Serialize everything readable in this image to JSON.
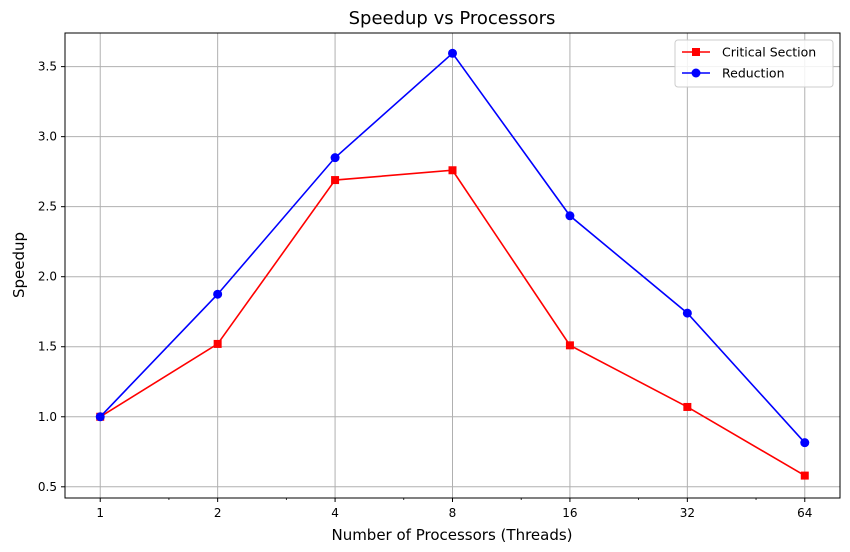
{
  "chart_data": {
    "type": "line",
    "title": "Speedup vs Processors",
    "xlabel": "Number of Processors (Threads)",
    "ylabel": "Speedup",
    "x_scale": "log2",
    "x": [
      1,
      2,
      4,
      8,
      16,
      32,
      64
    ],
    "x_tick_labels": [
      "1",
      "2",
      "4",
      "8",
      "16",
      "32",
      "64"
    ],
    "ylim": [
      0.42,
      3.74
    ],
    "y_ticks": [
      0.5,
      1.0,
      1.5,
      2.0,
      2.5,
      3.0,
      3.5
    ],
    "y_tick_labels": [
      "0.5",
      "1.0",
      "1.5",
      "2.0",
      "2.5",
      "3.0",
      "3.5"
    ],
    "grid": true,
    "legend_position": "top-right",
    "series": [
      {
        "name": "Critical Section",
        "color": "#ff0000",
        "marker": "square",
        "values": [
          1.0,
          1.52,
          2.69,
          2.76,
          1.51,
          1.07,
          0.58
        ]
      },
      {
        "name": "Reduction",
        "color": "#0000ff",
        "marker": "circle",
        "values": [
          1.0,
          1.875,
          2.85,
          3.595,
          2.435,
          1.74,
          0.815
        ]
      }
    ]
  }
}
